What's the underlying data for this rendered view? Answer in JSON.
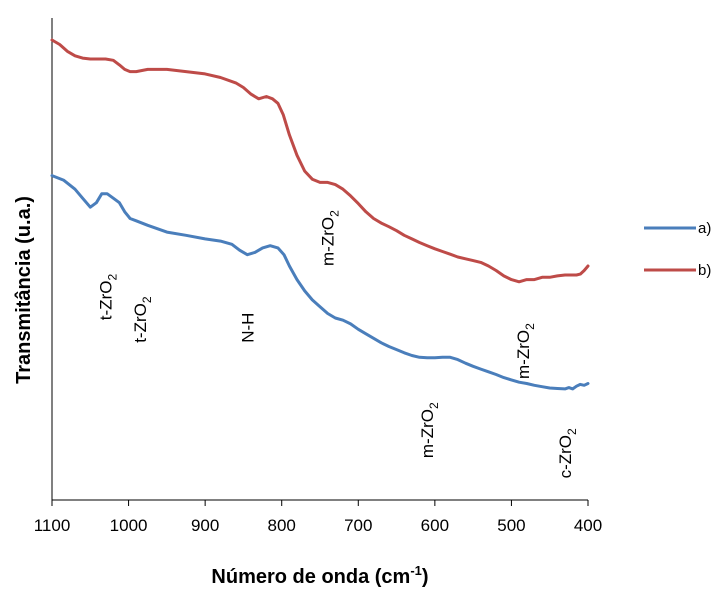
{
  "chart_data": {
    "type": "line",
    "title": "",
    "xlabel": "Número de onda (cm",
    "xlabel_sup": "-1",
    "xlabel_suffix": ")",
    "ylabel": "Transmitância (u.a.)",
    "xlim": [
      1100,
      400
    ],
    "ylim": [
      0,
      1
    ],
    "x_reversed": true,
    "x_ticks": [
      "1100",
      "1000",
      "900",
      "800",
      "700",
      "600",
      "500",
      "400"
    ],
    "y_ticks_shown": false,
    "grid": false,
    "legend_position": "right",
    "series": [
      {
        "name": "a)",
        "color": "#4a7ebb",
        "x": [
          1100,
          1085,
          1070,
          1060,
          1050,
          1042,
          1035,
          1028,
          1020,
          1012,
          1005,
          998,
          990,
          975,
          950,
          925,
          900,
          880,
          865,
          855,
          845,
          835,
          825,
          815,
          805,
          797,
          790,
          780,
          770,
          760,
          750,
          740,
          730,
          720,
          710,
          700,
          690,
          680,
          670,
          660,
          650,
          640,
          630,
          620,
          610,
          600,
          590,
          580,
          570,
          560,
          550,
          540,
          530,
          520,
          510,
          500,
          490,
          480,
          470,
          460,
          450,
          440,
          430,
          425,
          420,
          415,
          410,
          405,
          400
        ],
        "y": [
          0.7,
          0.69,
          0.67,
          0.65,
          0.63,
          0.64,
          0.66,
          0.66,
          0.65,
          0.64,
          0.62,
          0.605,
          0.6,
          0.59,
          0.575,
          0.568,
          0.56,
          0.555,
          0.548,
          0.535,
          0.525,
          0.53,
          0.54,
          0.545,
          0.54,
          0.525,
          0.5,
          0.47,
          0.445,
          0.425,
          0.41,
          0.395,
          0.385,
          0.38,
          0.372,
          0.36,
          0.35,
          0.34,
          0.33,
          0.322,
          0.315,
          0.308,
          0.302,
          0.298,
          0.297,
          0.297,
          0.298,
          0.298,
          0.293,
          0.285,
          0.278,
          0.272,
          0.266,
          0.26,
          0.253,
          0.248,
          0.243,
          0.24,
          0.236,
          0.233,
          0.23,
          0.229,
          0.228,
          0.231,
          0.228,
          0.234,
          0.238,
          0.236,
          0.24
        ]
      },
      {
        "name": "b)",
        "color": "#be4b48",
        "x": [
          1100,
          1090,
          1080,
          1070,
          1060,
          1050,
          1040,
          1030,
          1020,
          1012,
          1005,
          998,
          990,
          975,
          950,
          925,
          900,
          880,
          860,
          850,
          840,
          830,
          820,
          812,
          805,
          798,
          790,
          780,
          770,
          760,
          750,
          740,
          730,
          720,
          710,
          700,
          690,
          680,
          670,
          660,
          650,
          640,
          630,
          620,
          610,
          600,
          590,
          580,
          570,
          560,
          550,
          540,
          530,
          520,
          510,
          500,
          490,
          480,
          470,
          460,
          450,
          440,
          430,
          420,
          415,
          410,
          405,
          400
        ],
        "y": [
          1.0,
          0.99,
          0.975,
          0.965,
          0.96,
          0.958,
          0.958,
          0.958,
          0.955,
          0.945,
          0.935,
          0.93,
          0.93,
          0.935,
          0.935,
          0.93,
          0.925,
          0.917,
          0.905,
          0.895,
          0.88,
          0.87,
          0.875,
          0.87,
          0.86,
          0.835,
          0.79,
          0.745,
          0.71,
          0.692,
          0.685,
          0.685,
          0.68,
          0.67,
          0.655,
          0.638,
          0.62,
          0.605,
          0.595,
          0.587,
          0.578,
          0.568,
          0.56,
          0.552,
          0.545,
          0.538,
          0.532,
          0.526,
          0.52,
          0.516,
          0.512,
          0.508,
          0.5,
          0.49,
          0.478,
          0.47,
          0.465,
          0.47,
          0.47,
          0.475,
          0.475,
          0.478,
          0.48,
          0.48,
          0.48,
          0.482,
          0.49,
          0.5
        ]
      }
    ],
    "annotations": [
      {
        "base": "t-ZrO",
        "sub": "2",
        "x": 1030,
        "y_pos": 0.38
      },
      {
        "base": "t-ZrO",
        "sub": "2",
        "x": 985,
        "y_pos": 0.33
      },
      {
        "base": "N-H",
        "sub": "",
        "x": 845,
        "y_pos": 0.33
      },
      {
        "base": "m-ZrO",
        "sub": "2",
        "x": 740,
        "y_pos": 0.5
      },
      {
        "base": "m-ZrO",
        "sub": "2",
        "x": 610,
        "y_pos": 0.075
      },
      {
        "base": "m-ZrO",
        "sub": "2",
        "x": 485,
        "y_pos": 0.25
      },
      {
        "base": "c-ZrO",
        "sub": "2",
        "x": 430,
        "y_pos": 0.03
      }
    ]
  }
}
